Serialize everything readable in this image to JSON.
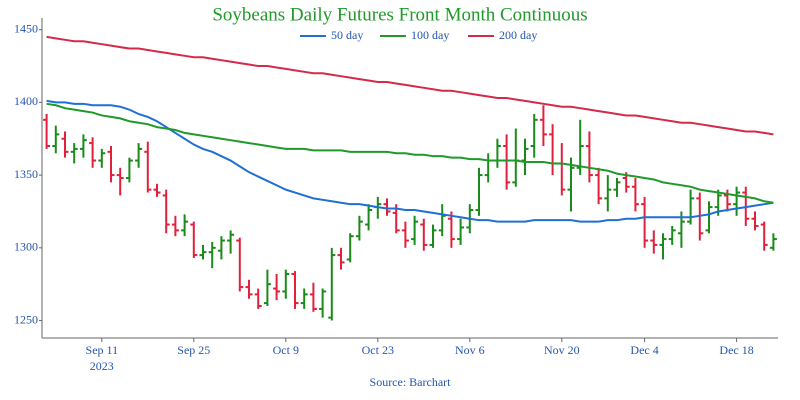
{
  "chart_data": {
    "type": "ohlc",
    "title": "Soybeans Daily Futures Front Month Continuous",
    "source": "Source: Barchart",
    "x_sublabel": "2023",
    "categories": [
      null,
      null,
      null,
      null,
      null,
      null,
      "Sep 11",
      null,
      null,
      null,
      null,
      null,
      null,
      null,
      null,
      null,
      "Sep 25",
      null,
      null,
      null,
      null,
      null,
      null,
      null,
      null,
      null,
      "Oct 9",
      null,
      null,
      null,
      null,
      null,
      null,
      null,
      null,
      null,
      "Oct 23",
      null,
      null,
      null,
      null,
      null,
      null,
      null,
      null,
      null,
      "Nov 6",
      null,
      null,
      null,
      null,
      null,
      null,
      null,
      null,
      null,
      "Nov 20",
      null,
      null,
      null,
      null,
      null,
      null,
      null,
      null,
      "Dec 4",
      null,
      null,
      null,
      null,
      null,
      null,
      null,
      null,
      null,
      "Dec 18",
      null,
      null,
      null,
      null
    ],
    "open": [
      1388,
      1370,
      1375,
      1366,
      1368,
      1372,
      1360,
      1366,
      1350,
      1348,
      1360,
      1366,
      1340,
      1336,
      1316,
      1312,
      1316,
      1295,
      1297,
      1298,
      1305,
      1305,
      1273,
      1268,
      1262,
      1272,
      1270,
      1282,
      1262,
      1268,
      1258,
      1252,
      1295,
      1292,
      1308,
      1316,
      1328,
      1330,
      1324,
      1312,
      1306,
      1316,
      1302,
      1312,
      1320,
      1306,
      1314,
      1326,
      1350,
      1360,
      1370,
      1345,
      1360,
      1370,
      1388,
      1378,
      1358,
      1340,
      1355,
      1370,
      1350,
      1334,
      1340,
      1348,
      1342,
      1330,
      1305,
      1302,
      1306,
      1310,
      1318,
      1334,
      1312,
      1328,
      1336,
      1330,
      1338,
      1320,
      1316,
      1300
    ],
    "high": [
      1392,
      1384,
      1380,
      1372,
      1378,
      1376,
      1368,
      1370,
      1355,
      1362,
      1372,
      1373,
      1344,
      1340,
      1322,
      1323,
      1318,
      1302,
      1304,
      1308,
      1312,
      1307,
      1278,
      1272,
      1285,
      1282,
      1285,
      1284,
      1272,
      1276,
      1272,
      1300,
      1300,
      1310,
      1322,
      1330,
      1335,
      1334,
      1330,
      1318,
      1322,
      1320,
      1316,
      1330,
      1325,
      1320,
      1330,
      1355,
      1365,
      1375,
      1378,
      1382,
      1375,
      1392,
      1398,
      1385,
      1372,
      1362,
      1388,
      1380,
      1355,
      1350,
      1348,
      1352,
      1348,
      1335,
      1312,
      1310,
      1315,
      1325,
      1340,
      1338,
      1332,
      1340,
      1340,
      1342,
      1342,
      1325,
      1318,
      1310
    ],
    "low": [
      1368,
      1365,
      1362,
      1358,
      1362,
      1355,
      1355,
      1345,
      1336,
      1345,
      1355,
      1338,
      1335,
      1310,
      1308,
      1308,
      1293,
      1292,
      1286,
      1292,
      1296,
      1270,
      1265,
      1258,
      1260,
      1264,
      1265,
      1258,
      1258,
      1256,
      1252,
      1250,
      1285,
      1290,
      1305,
      1312,
      1320,
      1322,
      1310,
      1300,
      1302,
      1298,
      1300,
      1308,
      1300,
      1302,
      1310,
      1322,
      1345,
      1355,
      1340,
      1342,
      1350,
      1362,
      1370,
      1350,
      1336,
      1325,
      1350,
      1345,
      1330,
      1325,
      1335,
      1338,
      1325,
      1300,
      1296,
      1292,
      1302,
      1300,
      1316,
      1305,
      1310,
      1322,
      1325,
      1322,
      1315,
      1312,
      1298,
      1298
    ],
    "close": [
      1370,
      1378,
      1366,
      1368,
      1374,
      1360,
      1365,
      1350,
      1348,
      1360,
      1368,
      1340,
      1338,
      1316,
      1312,
      1318,
      1295,
      1297,
      1300,
      1305,
      1309,
      1273,
      1268,
      1260,
      1275,
      1270,
      1282,
      1262,
      1268,
      1258,
      1270,
      1295,
      1290,
      1308,
      1318,
      1326,
      1330,
      1325,
      1312,
      1305,
      1318,
      1302,
      1312,
      1322,
      1306,
      1314,
      1326,
      1350,
      1360,
      1370,
      1345,
      1360,
      1368,
      1388,
      1378,
      1358,
      1340,
      1355,
      1370,
      1350,
      1334,
      1340,
      1345,
      1342,
      1330,
      1305,
      1302,
      1306,
      1312,
      1318,
      1334,
      1310,
      1328,
      1336,
      1330,
      1338,
      1320,
      1315,
      1302,
      1306
    ],
    "up_color": "#1a8a1a",
    "down_color": "#e2203c",
    "series": [
      {
        "name": "50 day",
        "color": "#1f6fd6",
        "values": [
          1401,
          1400,
          1400,
          1399,
          1399,
          1398,
          1398,
          1398,
          1397,
          1395,
          1392,
          1390,
          1387,
          1383,
          1379,
          1375,
          1371,
          1368,
          1366,
          1363,
          1360,
          1356,
          1352,
          1349,
          1346,
          1343,
          1340,
          1338,
          1336,
          1334,
          1333,
          1332,
          1331,
          1330,
          1330,
          1329,
          1328,
          1327,
          1327,
          1326,
          1326,
          1325,
          1324,
          1323,
          1322,
          1321,
          1320,
          1319,
          1319,
          1318,
          1318,
          1318,
          1318,
          1319,
          1319,
          1319,
          1319,
          1319,
          1318,
          1318,
          1318,
          1319,
          1319,
          1320,
          1320,
          1321,
          1321,
          1321,
          1321,
          1321,
          1321,
          1322,
          1323,
          1325,
          1326,
          1327,
          1328,
          1329,
          1330,
          1331
        ]
      },
      {
        "name": "100 day",
        "color": "#1f9a2a",
        "values": [
          1399,
          1398,
          1396,
          1395,
          1394,
          1393,
          1391,
          1390,
          1389,
          1387,
          1386,
          1385,
          1383,
          1382,
          1381,
          1379,
          1378,
          1377,
          1376,
          1375,
          1374,
          1373,
          1372,
          1371,
          1370,
          1369,
          1368,
          1368,
          1368,
          1367,
          1367,
          1367,
          1367,
          1366,
          1366,
          1366,
          1366,
          1366,
          1365,
          1365,
          1364,
          1364,
          1363,
          1363,
          1362,
          1362,
          1361,
          1361,
          1360,
          1360,
          1360,
          1360,
          1359,
          1359,
          1359,
          1358,
          1358,
          1357,
          1356,
          1355,
          1354,
          1353,
          1351,
          1350,
          1349,
          1348,
          1347,
          1345,
          1344,
          1343,
          1342,
          1340,
          1339,
          1338,
          1337,
          1336,
          1335,
          1334,
          1332,
          1331
        ]
      },
      {
        "name": "200 day",
        "color": "#d42a4a",
        "values": [
          1445,
          1444,
          1443,
          1442,
          1442,
          1441,
          1440,
          1439,
          1438,
          1437,
          1437,
          1436,
          1435,
          1434,
          1433,
          1432,
          1431,
          1431,
          1430,
          1429,
          1428,
          1427,
          1426,
          1425,
          1425,
          1424,
          1423,
          1422,
          1421,
          1420,
          1420,
          1419,
          1418,
          1417,
          1416,
          1415,
          1414,
          1414,
          1413,
          1412,
          1411,
          1410,
          1409,
          1408,
          1408,
          1407,
          1406,
          1405,
          1404,
          1403,
          1403,
          1402,
          1401,
          1400,
          1399,
          1398,
          1397,
          1397,
          1396,
          1395,
          1394,
          1393,
          1392,
          1391,
          1391,
          1390,
          1389,
          1388,
          1387,
          1386,
          1386,
          1385,
          1384,
          1383,
          1382,
          1381,
          1380,
          1380,
          1379,
          1378
        ]
      }
    ],
    "ylim": [
      1238,
      1458
    ],
    "yticks": [
      1250,
      1300,
      1350,
      1400,
      1450
    ],
    "grid": false
  }
}
